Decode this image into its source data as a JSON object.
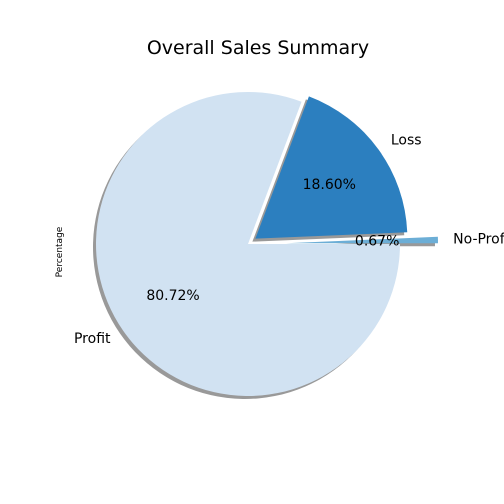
{
  "chart_data": {
    "type": "pie",
    "title": "Overall Sales Summary",
    "ylabel": "Percentage",
    "slices": [
      {
        "label": "Profit",
        "value": 80.72,
        "pct_label": "80.72%",
        "color": "#d1e2f2",
        "explode": 0.0
      },
      {
        "label": "Loss",
        "value": 18.6,
        "pct_label": "18.60%",
        "color": "#2c7fbf",
        "explode": 0.06
      },
      {
        "label": "No-Profit",
        "value": 0.67,
        "pct_label": "0.67%",
        "color": "#6caed6",
        "explode": 0.25
      }
    ],
    "start_angle_deg": 0,
    "direction": "clockwise",
    "shadow": true
  }
}
